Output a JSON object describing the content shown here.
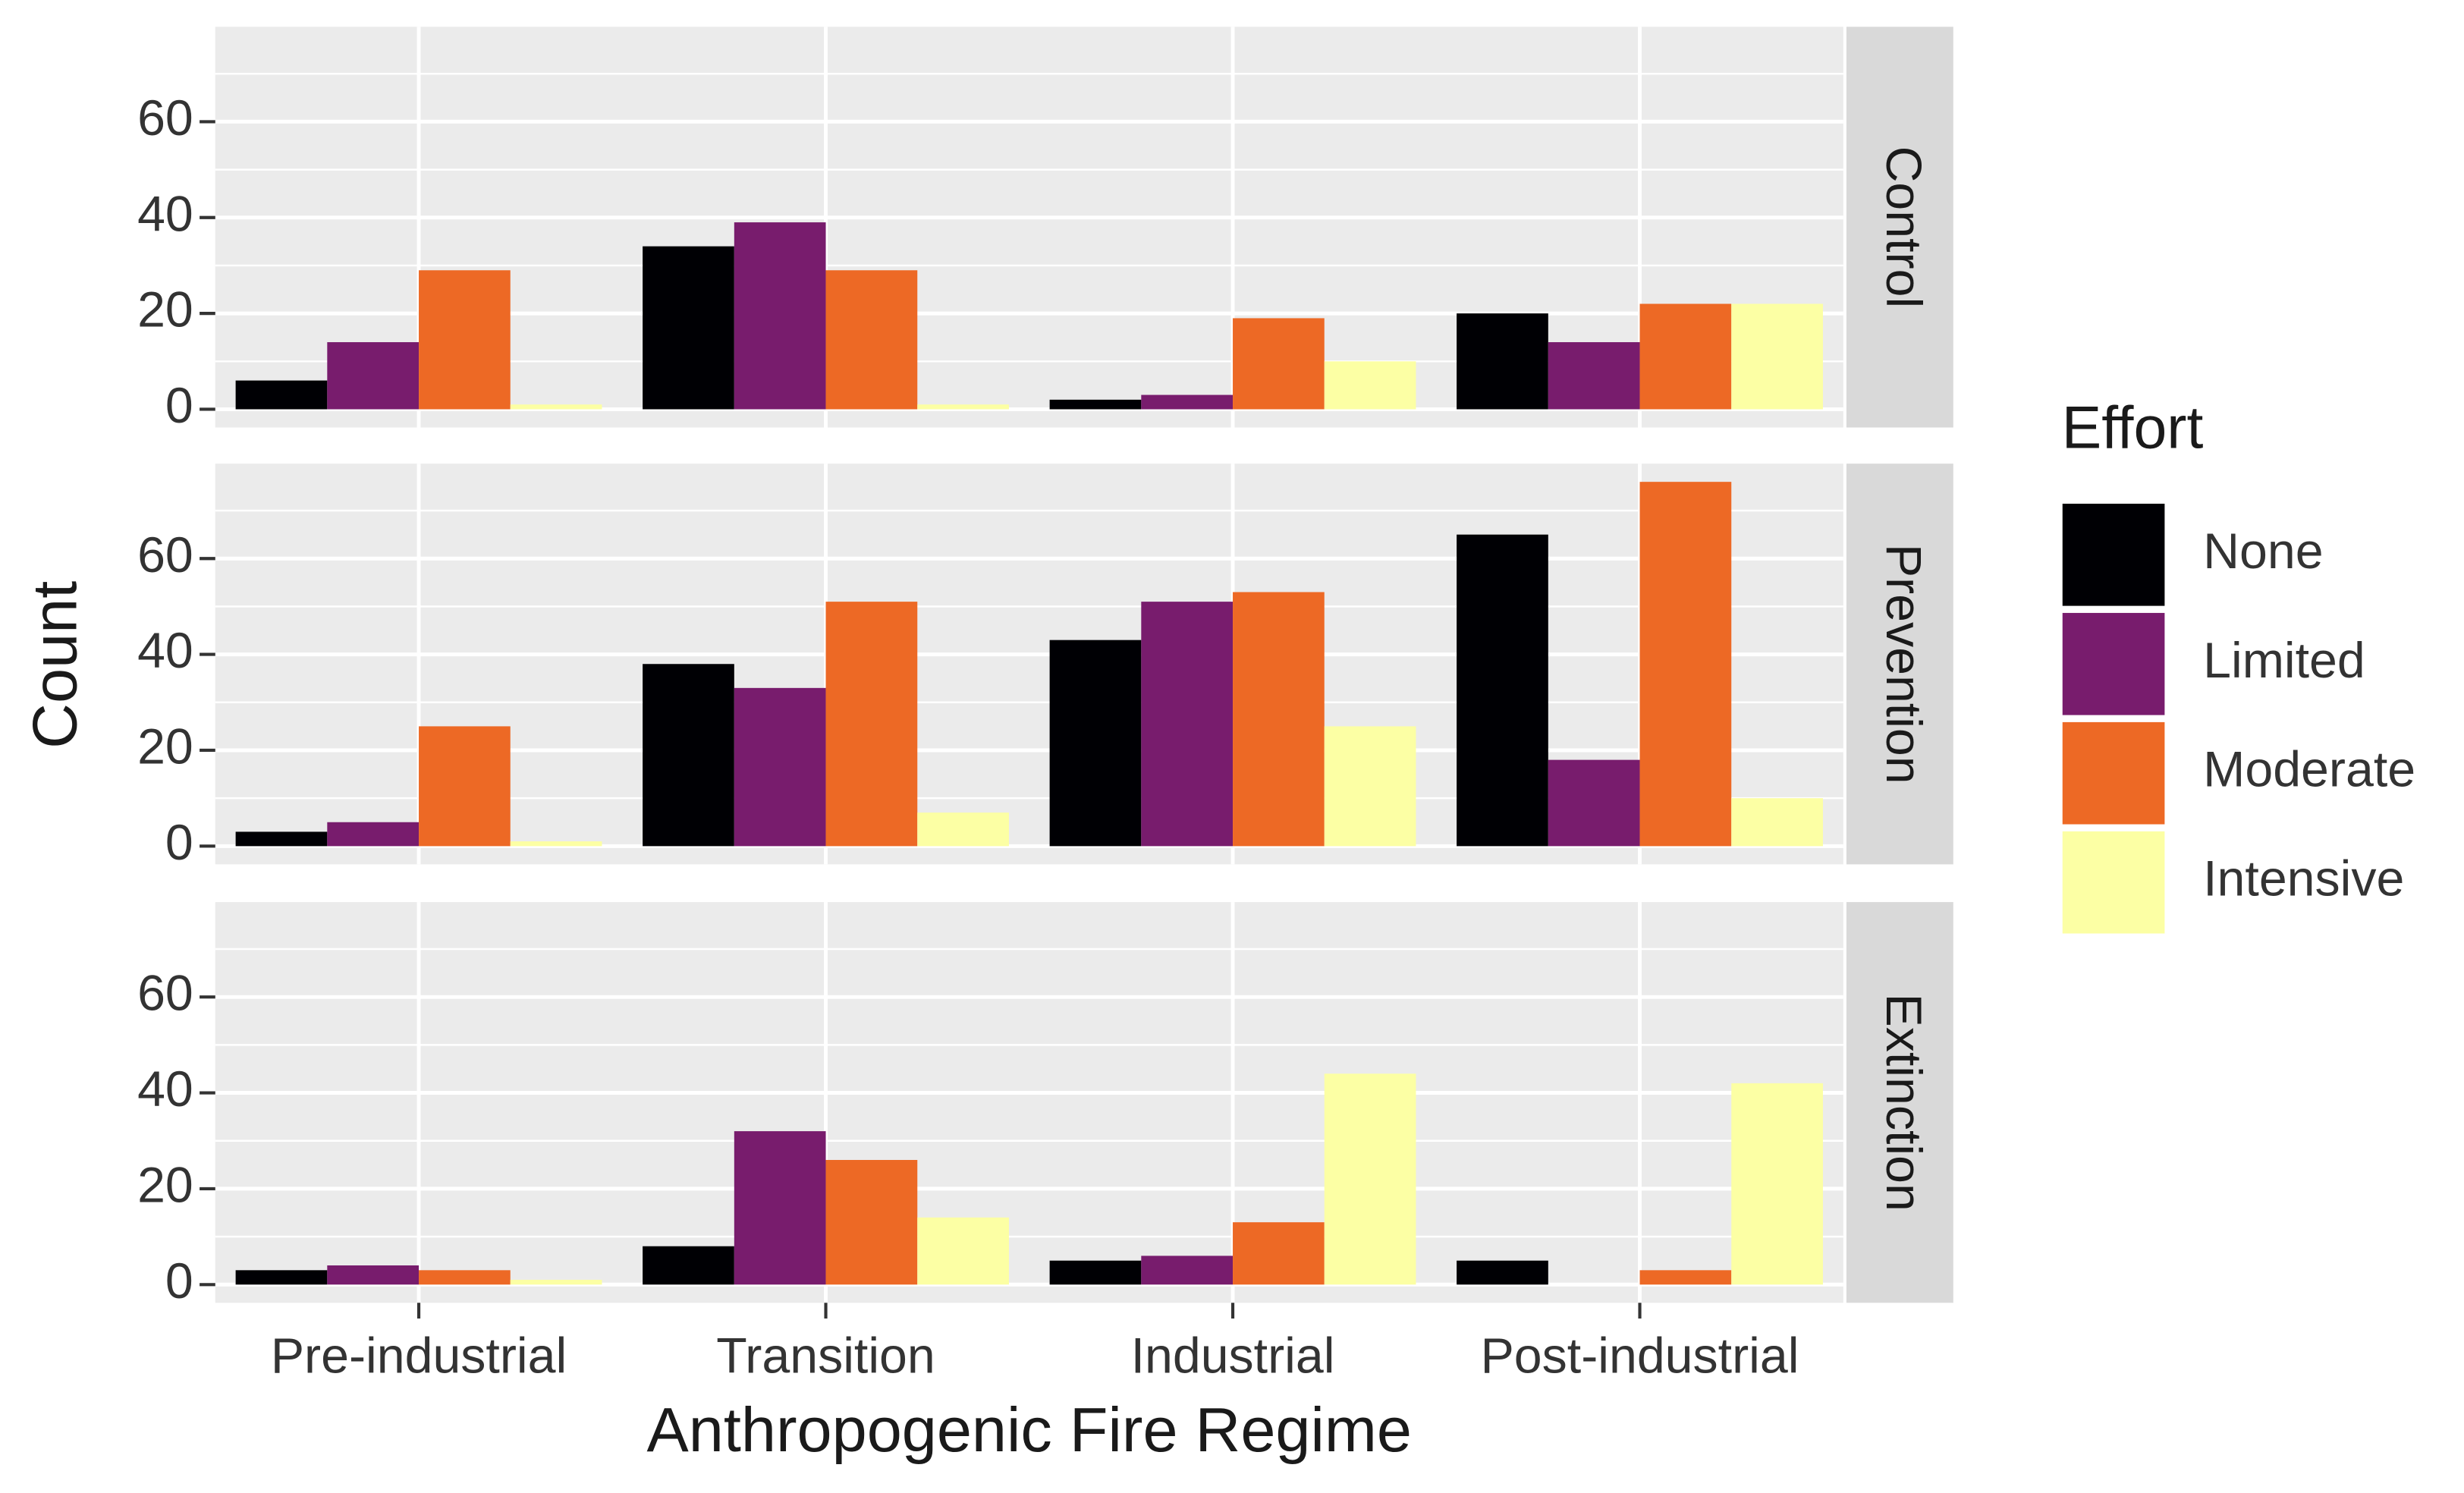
{
  "chart_data": {
    "type": "bar",
    "x_label": "Anthropogenic Fire Regime",
    "y_label": "Count",
    "legend_title": "Effort",
    "legend_position": "right",
    "grid": true,
    "categories": [
      "Pre-industrial",
      "Transition",
      "Industrial",
      "Post-industrial"
    ],
    "ylim": [
      -3.8,
      79.8
    ],
    "yticks": [
      0,
      20,
      40,
      60
    ],
    "minor_yticks": [
      10,
      30,
      50,
      70
    ],
    "facets": [
      {
        "title": "Control",
        "series": [
          {
            "name": "None",
            "color": "#000004",
            "values": [
              6,
              34,
              2,
              20
            ]
          },
          {
            "name": "Limited",
            "color": "#781c6d",
            "values": [
              14,
              39,
              3,
              14
            ]
          },
          {
            "name": "Moderate",
            "color": "#ed6925",
            "values": [
              29,
              29,
              19,
              22
            ]
          },
          {
            "name": "Intensive",
            "color": "#fcffa4",
            "values": [
              1,
              1,
              10,
              22
            ]
          }
        ]
      },
      {
        "title": "Prevention",
        "series": [
          {
            "name": "None",
            "color": "#000004",
            "values": [
              3,
              38,
              43,
              65
            ]
          },
          {
            "name": "Limited",
            "color": "#781c6d",
            "values": [
              5,
              33,
              51,
              18
            ]
          },
          {
            "name": "Moderate",
            "color": "#ed6925",
            "values": [
              25,
              51,
              53,
              76
            ]
          },
          {
            "name": "Intensive",
            "color": "#fcffa4",
            "values": [
              1,
              7,
              25,
              10
            ]
          }
        ]
      },
      {
        "title": "Extinction",
        "series": [
          {
            "name": "None",
            "color": "#000004",
            "values": [
              3,
              8,
              5,
              5
            ]
          },
          {
            "name": "Limited",
            "color": "#781c6d",
            "values": [
              4,
              32,
              6,
              0
            ]
          },
          {
            "name": "Moderate",
            "color": "#ed6925",
            "values": [
              3,
              26,
              13,
              3
            ]
          },
          {
            "name": "Intensive",
            "color": "#fcffa4",
            "values": [
              1,
              14,
              44,
              42
            ]
          }
        ]
      }
    ]
  }
}
